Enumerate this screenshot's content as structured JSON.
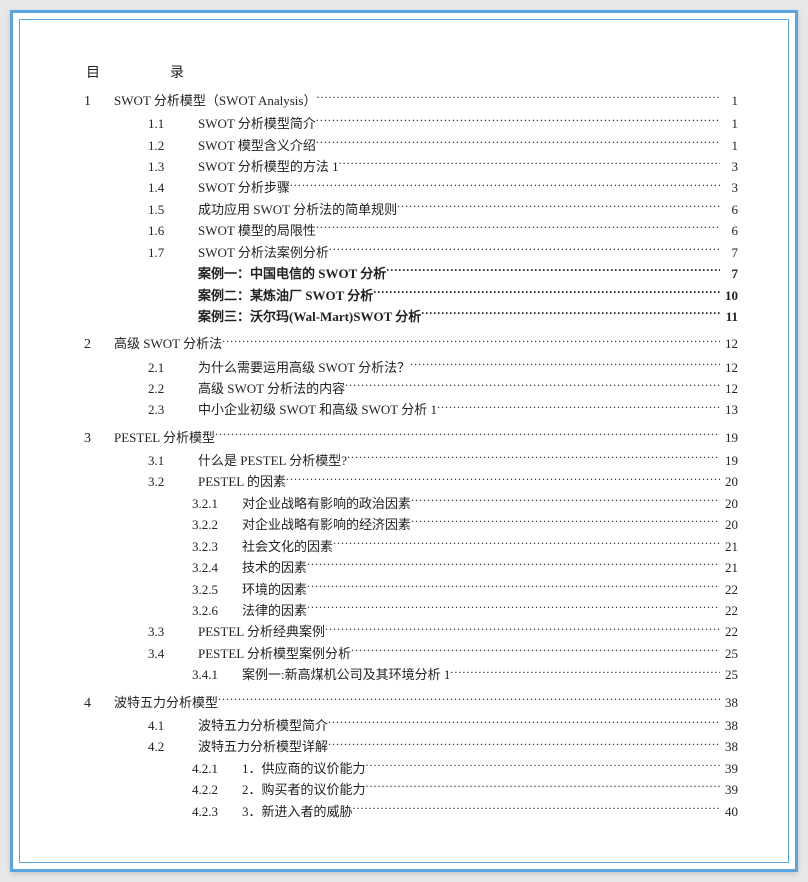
{
  "header": {
    "left": "目",
    "right": "录"
  },
  "entries": [
    {
      "level": 1,
      "num": "1",
      "label": "SWOT 分析模型（SWOT Analysis）",
      "page": "1",
      "bold": false,
      "gap": false
    },
    {
      "level": 2,
      "num": "1.1",
      "label": "SWOT 分析模型简介",
      "page": "1",
      "bold": false,
      "gap": false
    },
    {
      "level": 2,
      "num": "1.2",
      "label": "SWOT 模型含义介绍",
      "page": "1",
      "bold": false,
      "gap": false
    },
    {
      "level": 2,
      "num": "1.3",
      "label": "SWOT 分析模型的方法  1",
      "page": "3",
      "bold": false,
      "gap": false
    },
    {
      "level": 2,
      "num": "1.4",
      "label": "SWOT 分析步骤",
      "page": "3",
      "bold": false,
      "gap": false
    },
    {
      "level": 2,
      "num": "1.5",
      "label": "成功应用 SWOT 分析法的简单规则",
      "page": "6",
      "bold": false,
      "gap": false
    },
    {
      "level": 2,
      "num": "1.6",
      "label": "SWOT 模型的局限性",
      "page": "6",
      "bold": false,
      "gap": false
    },
    {
      "level": 2,
      "num": "1.7",
      "label": "SWOT 分析法案例分析",
      "page": "7",
      "bold": false,
      "gap": false
    },
    {
      "level": 2,
      "num": "",
      "label": "案例一：中国电信的 SWOT 分析",
      "page": "7",
      "bold": true,
      "gap": false,
      "casecls": true
    },
    {
      "level": 2,
      "num": "",
      "label": "案例二：某炼油厂 SWOT 分析",
      "page": "10",
      "bold": true,
      "gap": false,
      "casecls": true
    },
    {
      "level": 2,
      "num": "",
      "label": "案例三：沃尔玛(Wal-Mart)SWOT 分析",
      "page": " 11",
      "bold": true,
      "gap": false,
      "casecls": true
    },
    {
      "level": 1,
      "num": "2",
      "label": "高级 SWOT 分析法",
      "page": "12",
      "bold": false,
      "gap": true
    },
    {
      "level": 2,
      "num": "2.1",
      "label": "为什么需要运用高级 SWOT 分析法？",
      "page": "12",
      "bold": false,
      "gap": false
    },
    {
      "level": 2,
      "num": "2.2",
      "label": "高级 SWOT 分析法的内容",
      "page": "12",
      "bold": false,
      "gap": false
    },
    {
      "level": 2,
      "num": "2.3",
      "label": "中小企业初级 SWOT 和高级 SWOT 分析  1",
      "page": "13",
      "bold": false,
      "gap": false
    },
    {
      "level": 1,
      "num": "3",
      "label": "PESTEL 分析模型",
      "page": "19",
      "bold": false,
      "gap": true
    },
    {
      "level": 2,
      "num": "3.1",
      "label": "什么是 PESTEL 分析模型?",
      "page": "19",
      "bold": false,
      "gap": false
    },
    {
      "level": 2,
      "num": "3.2",
      "label": "PESTEL 的因素",
      "page": "20",
      "bold": false,
      "gap": false
    },
    {
      "level": 3,
      "num": "3.2.1",
      "label": "对企业战略有影响的政治因素",
      "page": "20",
      "bold": false,
      "gap": false
    },
    {
      "level": 3,
      "num": "3.2.2",
      "label": "对企业战略有影响的经济因素",
      "page": "20",
      "bold": false,
      "gap": false
    },
    {
      "level": 3,
      "num": "3.2.3",
      "label": "社会文化的因素",
      "page": "21",
      "bold": false,
      "gap": false
    },
    {
      "level": 3,
      "num": "3.2.4",
      "label": "技术的因素",
      "page": "21",
      "bold": false,
      "gap": false
    },
    {
      "level": 3,
      "num": "3.2.5",
      "label": "环境的因素",
      "page": "22",
      "bold": false,
      "gap": false
    },
    {
      "level": 3,
      "num": "3.2.6",
      "label": "法律的因素",
      "page": "22",
      "bold": false,
      "gap": false
    },
    {
      "level": 2,
      "num": "3.3",
      "label": "PESTEL 分析经典案例",
      "page": "22",
      "bold": false,
      "gap": false
    },
    {
      "level": 2,
      "num": "3.4",
      "label": "PESTEL 分析模型案例分析",
      "page": "25",
      "bold": false,
      "gap": false
    },
    {
      "level": 3,
      "num": "3.4.1",
      "label": "案例一:新高煤机公司及其环境分析  1",
      "page": "25",
      "bold": false,
      "gap": false
    },
    {
      "level": 1,
      "num": "4",
      "label": "波特五力分析模型",
      "page": "38",
      "bold": false,
      "gap": true
    },
    {
      "level": 2,
      "num": "4.1",
      "label": "波特五力分析模型简介",
      "page": "38",
      "bold": false,
      "gap": false
    },
    {
      "level": 2,
      "num": "4.2",
      "label": "波特五力分析模型详解",
      "page": "38",
      "bold": false,
      "gap": false
    },
    {
      "level": 3,
      "num": "4.2.1",
      "label": "1．供应商的议价能力",
      "page": "39",
      "bold": false,
      "gap": false
    },
    {
      "level": 3,
      "num": "4.2.2",
      "label": "2．购买者的议价能力",
      "page": "39",
      "bold": false,
      "gap": false
    },
    {
      "level": 3,
      "num": "4.2.3",
      "label": "3．新进入者的威胁",
      "page": "40",
      "bold": false,
      "gap": false
    }
  ],
  "colors": {
    "outer_border": "#5aa5e0",
    "inner_border": "#5aa5e0",
    "page_bg": "#ffffff",
    "body_bg": "#e8e8e8",
    "text": "#222222"
  }
}
